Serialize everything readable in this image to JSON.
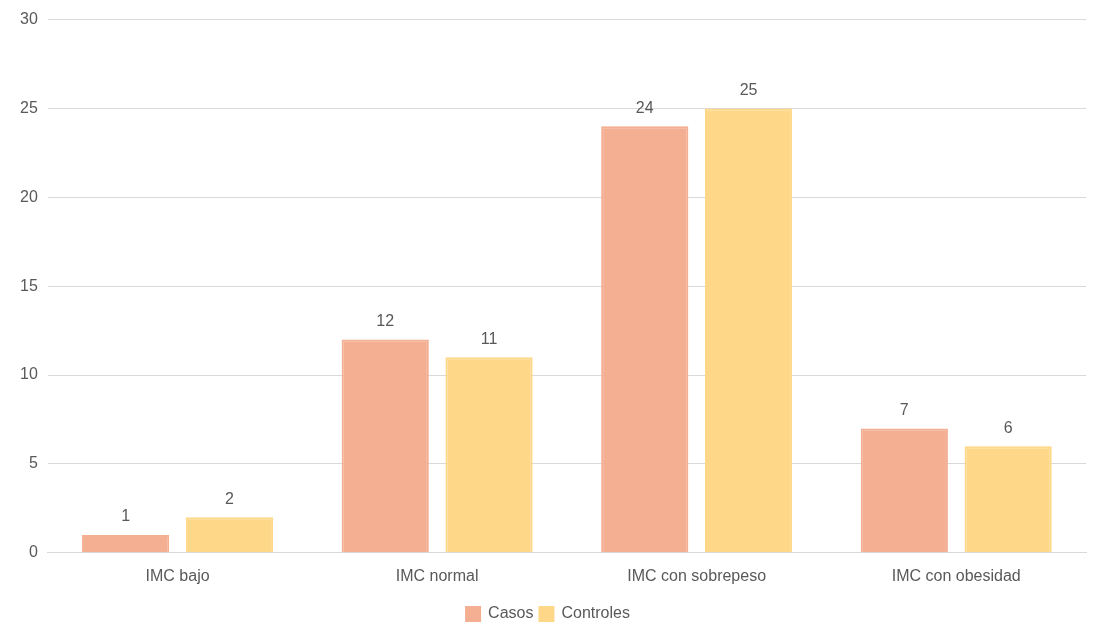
{
  "chart_data": {
    "type": "bar",
    "categories": [
      "IMC bajo",
      "IMC normal",
      "IMC con sobrepeso",
      "IMC con obesidad"
    ],
    "series": [
      {
        "name": "Casos",
        "color": "#f4ae91",
        "values": [
          1,
          12,
          24,
          7
        ]
      },
      {
        "name": "Controles",
        "color": "#fed888",
        "values": [
          2,
          11,
          25,
          6
        ]
      }
    ],
    "ylim": [
      0,
      30
    ],
    "yticks": [
      0,
      5,
      10,
      15,
      20,
      25,
      30
    ],
    "grid": "y",
    "legend": "bottom",
    "data_labels": true
  }
}
